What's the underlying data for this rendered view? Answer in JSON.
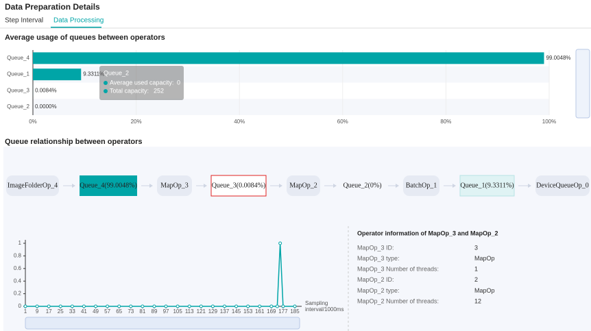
{
  "header": {
    "title": "Data Preparation Details",
    "tabs": [
      "Step Interval",
      "Data Processing"
    ]
  },
  "usage_chart": {
    "type": "bar",
    "title": "Average usage of queues between operators",
    "categories": [
      "Queue_4",
      "Queue_1",
      "Queue_3",
      "Queue_2"
    ],
    "values": [
      99.0048,
      9.3311,
      0.0084,
      0
    ],
    "value_labels": [
      "99.0048%",
      "9.3311%",
      "0.0084%",
      "0.0000%"
    ],
    "color": "#00a5a7",
    "xlim": [
      0,
      100
    ],
    "xticks": [
      {
        "value": 0,
        "label": "0%"
      },
      {
        "value": 20,
        "label": "20%"
      },
      {
        "value": 40,
        "label": "40%"
      },
      {
        "value": 60,
        "label": "60%"
      },
      {
        "value": 80,
        "label": "80%"
      },
      {
        "value": 100,
        "label": "100%"
      }
    ],
    "tooltip": {
      "title": "Queue_2",
      "rows": [
        {
          "label": "Average used capacity:",
          "value": 0
        },
        {
          "label": "Total capacity:",
          "value": 252
        }
      ]
    }
  },
  "relationship": {
    "title": "Queue relationship between operators",
    "nodes": [
      "ImageFolderOp_4",
      "Queue_4(99.0048%)",
      "MapOp_3",
      "Queue_3(0.0084%)",
      "MapOp_2",
      "Queue_2(0%)",
      "BatchOp_1",
      "Queue_1(9.3311%)",
      "DeviceQueueOp_0"
    ]
  },
  "chart_data": {
    "type": "line",
    "x_label": "Sampling interval/1000ms",
    "color": "#00a5a7",
    "x": [
      1,
      9,
      17,
      25,
      33,
      41,
      49,
      57,
      65,
      73,
      81,
      89,
      97,
      105,
      113,
      121,
      129,
      137,
      145,
      153,
      161,
      169,
      173,
      175,
      177,
      185
    ],
    "values": [
      0,
      0,
      0,
      0,
      0,
      0,
      0,
      0,
      0,
      0,
      0,
      0,
      0,
      0,
      0,
      0,
      0,
      0,
      0,
      0,
      0,
      0,
      0,
      1,
      0,
      0
    ],
    "xlim": [
      1,
      185
    ],
    "xticks": [
      1,
      9,
      17,
      25,
      33,
      41,
      49,
      57,
      65,
      73,
      81,
      89,
      97,
      105,
      113,
      121,
      129,
      137,
      145,
      153,
      161,
      169,
      177,
      185
    ],
    "ylim": [
      0,
      1
    ],
    "yticks": [
      0,
      0.2,
      0.4,
      0.6,
      0.8,
      1
    ],
    "grid": false
  },
  "operator_info": {
    "title": "Operator information of MapOp_3 and MapOp_2",
    "rows": [
      [
        "MapOp_3 ID:",
        3
      ],
      [
        "MapOp_3 type:",
        "MapOp"
      ],
      [
        "MapOp_3 Number of threads:",
        1
      ],
      [
        "MapOp_2 ID:",
        2
      ],
      [
        "MapOp_2 type:",
        "MapOp"
      ],
      [
        "MapOp_2 Number of threads:",
        12
      ]
    ]
  }
}
